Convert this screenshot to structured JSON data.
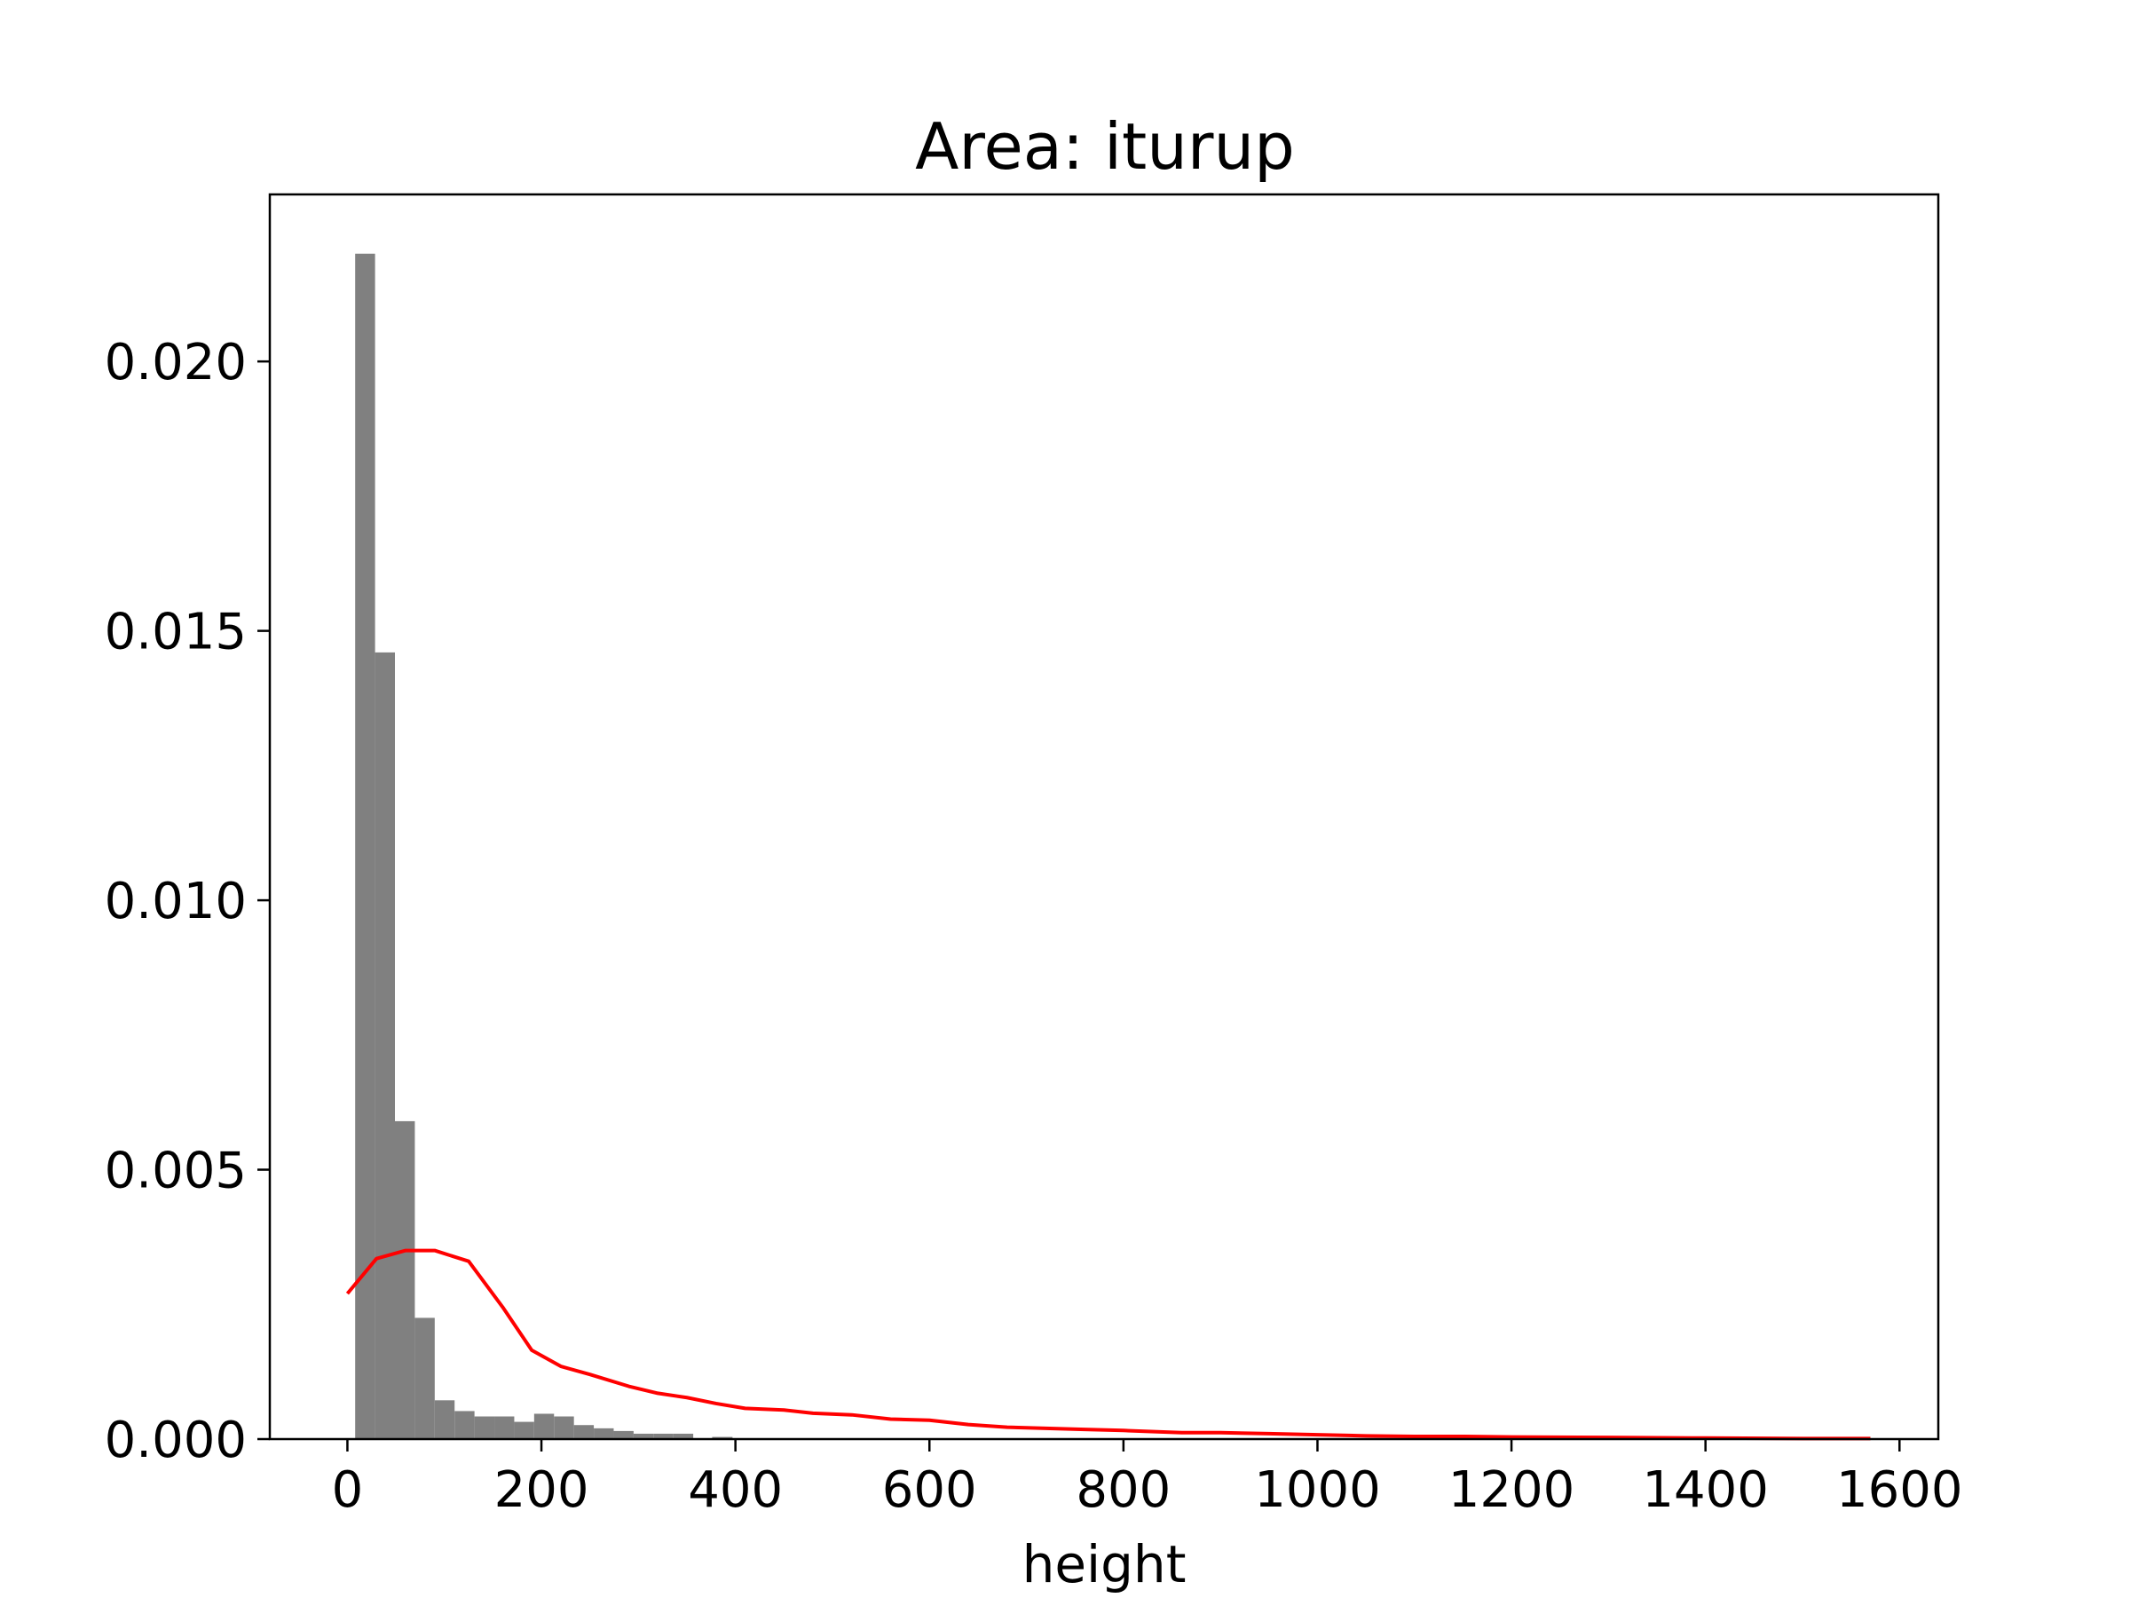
{
  "chart_data": {
    "type": "bar",
    "title": "Area: iturup",
    "xlabel": "height",
    "ylabel": "",
    "xlim": [
      -80,
      1640
    ],
    "ylim": [
      0,
      0.0231
    ],
    "grid": false,
    "x_ticks": [
      {
        "value": 0,
        "label": "0"
      },
      {
        "value": 200,
        "label": "200"
      },
      {
        "value": 400,
        "label": "400"
      },
      {
        "value": 600,
        "label": "600"
      },
      {
        "value": 800,
        "label": "800"
      },
      {
        "value": 1000,
        "label": "1000"
      },
      {
        "value": 1200,
        "label": "1200"
      },
      {
        "value": 1400,
        "label": "1400"
      },
      {
        "value": 1600,
        "label": "1600"
      }
    ],
    "y_ticks": [
      {
        "value": 0,
        "label": "0.000"
      },
      {
        "value": 0.005,
        "label": "0.005"
      },
      {
        "value": 0.01,
        "label": "0.010"
      },
      {
        "value": 0.015,
        "label": "0.015"
      },
      {
        "value": 0.02,
        "label": "0.020"
      }
    ],
    "histogram": {
      "color": "#808080",
      "bins": [
        {
          "x0": 8,
          "x1": 28.5,
          "value": 0.022
        },
        {
          "x0": 28.5,
          "x1": 49,
          "value": 0.0146
        },
        {
          "x0": 49,
          "x1": 69.5,
          "value": 0.0059
        },
        {
          "x0": 69.5,
          "x1": 90,
          "value": 0.00225
        },
        {
          "x0": 90,
          "x1": 110.5,
          "value": 0.00072
        },
        {
          "x0": 110.5,
          "x1": 131,
          "value": 0.00052
        },
        {
          "x0": 131,
          "x1": 151.5,
          "value": 0.00042
        },
        {
          "x0": 151.5,
          "x1": 172,
          "value": 0.00042
        },
        {
          "x0": 172,
          "x1": 192.5,
          "value": 0.00032
        },
        {
          "x0": 192.5,
          "x1": 213,
          "value": 0.00047
        },
        {
          "x0": 213,
          "x1": 233.5,
          "value": 0.00042
        },
        {
          "x0": 233.5,
          "x1": 254,
          "value": 0.00026
        },
        {
          "x0": 254,
          "x1": 274.5,
          "value": 0.0002
        },
        {
          "x0": 274.5,
          "x1": 295,
          "value": 0.00015
        },
        {
          "x0": 295,
          "x1": 315.5,
          "value": 0.0001
        },
        {
          "x0": 315.5,
          "x1": 336,
          "value": 0.0001
        },
        {
          "x0": 336,
          "x1": 356.5,
          "value": 0.0001
        },
        {
          "x0": 376,
          "x1": 397,
          "value": 4e-05
        }
      ]
    },
    "series": [
      {
        "type": "line",
        "color": "#ff0000",
        "x": [
          0,
          30,
          60,
          90,
          125,
          160,
          190,
          220,
          250,
          290,
          320,
          350,
          380,
          410,
          450,
          480,
          520,
          560,
          600,
          640,
          680,
          720,
          760,
          800,
          860,
          900,
          950,
          1000,
          1050,
          1100,
          1150,
          1200,
          1300,
          1400,
          1500,
          1570
        ],
        "y": [
          0.0027,
          0.00335,
          0.0035,
          0.0035,
          0.0033,
          0.00245,
          0.00165,
          0.00135,
          0.0012,
          0.00098,
          0.00085,
          0.00077,
          0.00066,
          0.00057,
          0.00054,
          0.00048,
          0.00045,
          0.00037,
          0.00035,
          0.00027,
          0.00022,
          0.0002,
          0.00018,
          0.00016,
          0.00012,
          0.00012,
          0.0001,
          8e-05,
          6e-05,
          5e-05,
          5e-05,
          4e-05,
          3e-05,
          2e-05,
          1e-05,
          1e-05
        ]
      }
    ]
  }
}
